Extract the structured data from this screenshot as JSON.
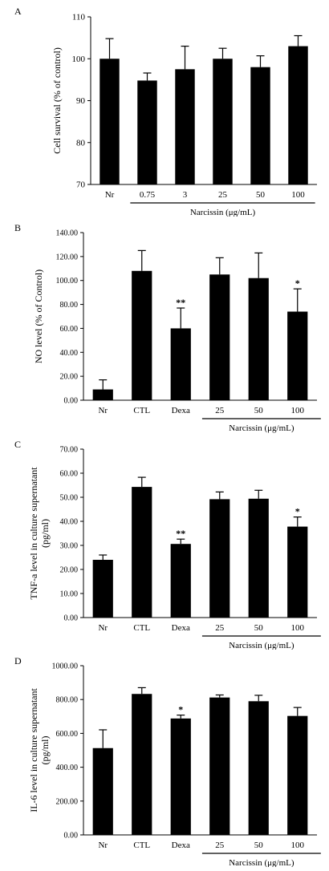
{
  "chart_data": [
    {
      "panel_label": "A",
      "type": "bar",
      "categories": [
        "Nr",
        "0.75",
        "3",
        "25",
        "50",
        "100"
      ],
      "values": [
        100,
        94.8,
        97.5,
        100,
        98,
        103
      ],
      "errors": [
        4.8,
        1.8,
        5.5,
        2.5,
        2.7,
        2.5
      ],
      "significance": [
        "",
        "",
        "",
        "",
        "",
        ""
      ],
      "ylabel": "Cell survival (% of control)",
      "ylim": [
        70,
        110
      ],
      "yticks": [
        70,
        80,
        90,
        100,
        110
      ],
      "ytick_labels": [
        "70",
        "80",
        "90",
        "100",
        "110"
      ],
      "group_label": "Narcissin (μg/mL)",
      "group_span": [
        1,
        5
      ]
    },
    {
      "panel_label": "B",
      "type": "bar",
      "categories": [
        "Nr",
        "CTL",
        "Dexa",
        "25",
        "50",
        "100"
      ],
      "values": [
        9,
        108,
        60,
        105,
        102,
        74
      ],
      "errors": [
        8,
        17,
        17,
        14,
        21,
        19
      ],
      "significance": [
        "",
        "",
        "**",
        "",
        "",
        "*"
      ],
      "ylabel": "NO level (% of Control)",
      "ylim": [
        0,
        140
      ],
      "yticks": [
        0,
        20,
        40,
        60,
        80,
        100,
        120,
        140
      ],
      "ytick_labels": [
        "0.00",
        "20.00",
        "40.00",
        "60.00",
        "80.00",
        "100.00",
        "120.00",
        "140.00"
      ],
      "group_label": "Narcissin (μg/mL)",
      "group_span": [
        3,
        5
      ]
    },
    {
      "panel_label": "C",
      "type": "bar",
      "categories": [
        "Nr",
        "CTL",
        "Dexa",
        "25",
        "50",
        "100"
      ],
      "values": [
        24,
        54.3,
        30.6,
        49.2,
        49.4,
        37.8
      ],
      "errors": [
        2,
        4,
        2,
        3,
        3.5,
        4
      ],
      "significance": [
        "",
        "",
        "**",
        "",
        "",
        "*"
      ],
      "ylabel": "TNF-a level in culture supernatant (pg/ml)",
      "ylabel_lines": [
        "TNF-a level in culture supernatant",
        "(pg/ml)"
      ],
      "ylim": [
        0,
        70
      ],
      "yticks": [
        0,
        10,
        20,
        30,
        40,
        50,
        60,
        70
      ],
      "ytick_labels": [
        "0.00",
        "10.00",
        "20.00",
        "30.00",
        "40.00",
        "50.00",
        "60.00",
        "70.00"
      ],
      "group_label": "Narcissin (μg/mL)",
      "group_span": [
        3,
        5
      ]
    },
    {
      "panel_label": "D",
      "type": "bar",
      "categories": [
        "Nr",
        "CTL",
        "Dexa",
        "25",
        "50",
        "100"
      ],
      "values": [
        513,
        833,
        688,
        812,
        790,
        703
      ],
      "errors": [
        108,
        37,
        20,
        15,
        35,
        50
      ],
      "significance": [
        "",
        "",
        "*",
        "",
        "",
        ""
      ],
      "ylabel": "IL-6 level in culture supernatant (pg/ml)",
      "ylabel_lines": [
        "IL-6 level in culture supernatant",
        "(pg/ml)"
      ],
      "ylim": [
        0,
        1000
      ],
      "yticks": [
        0,
        200,
        400,
        600,
        800,
        1000
      ],
      "ytick_labels": [
        "0.00",
        "200.00",
        "400.00",
        "600.00",
        "800.00",
        "1000.00"
      ],
      "group_label": "Narcissin (μg/mL)",
      "group_span": [
        3,
        5
      ]
    }
  ]
}
